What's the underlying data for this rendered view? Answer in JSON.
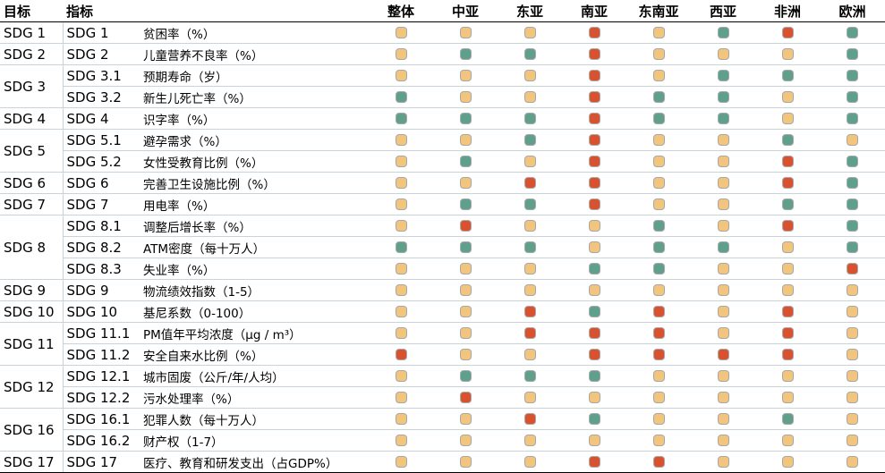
{
  "columns": {
    "goal": "目标",
    "indicator": "指标",
    "regions": [
      "整体",
      "中亚",
      "东亚",
      "南亚",
      "东南亚",
      "西亚",
      "非洲",
      "欧洲"
    ]
  },
  "legend_colors": {
    "y": "#f2c57f",
    "g": "#5fa08c",
    "r": "#d9522f"
  },
  "rows": [
    {
      "goal": "SDG 1",
      "span": 1,
      "id": "SDG 1",
      "desc": "贫困率（%）",
      "s": "yyyrygrg"
    },
    {
      "goal": "SDG 2",
      "span": 1,
      "id": "SDG 2",
      "desc": "儿童营养不良率（%）",
      "s": "yggryyyg"
    },
    {
      "goal": "SDG 3",
      "span": 2,
      "id": "SDG 3.1",
      "desc": "预期寿命（岁）",
      "s": "yyyryggg"
    },
    {
      "goal": "",
      "span": 0,
      "id": "SDG 3.2",
      "desc": "新生儿死亡率（%）",
      "s": "gyyrggyg"
    },
    {
      "goal": "SDG 4",
      "span": 1,
      "id": "SDG 4",
      "desc": "识字率（%）",
      "s": "gggrggyg"
    },
    {
      "goal": "SDG 5",
      "span": 2,
      "id": "SDG 5.1",
      "desc": "避孕需求（%）",
      "s": "yygryygy"
    },
    {
      "goal": "",
      "span": 0,
      "id": "SDG 5.2",
      "desc": "女性受教育比例（%）",
      "s": "ygyryyrg"
    },
    {
      "goal": "SDG 6",
      "span": 1,
      "id": "SDG 6",
      "desc": "完善卫生设施比例（%）",
      "s": "yyrryyrg"
    },
    {
      "goal": "SDG 7",
      "span": 1,
      "id": "SDG 7",
      "desc": "用电率（%）",
      "s": "yggryygg"
    },
    {
      "goal": "SDG 8",
      "span": 3,
      "id": "SDG 8.1",
      "desc": "调整后增长率（%）",
      "s": "yryygyrg"
    },
    {
      "goal": "",
      "span": 0,
      "id": "SDG 8.2",
      "desc": "ATM密度（每十万人）",
      "s": "gggyggyg"
    },
    {
      "goal": "",
      "span": 0,
      "id": "SDG 8.3",
      "desc": "失业率（%）",
      "s": "yyyggyyr"
    },
    {
      "goal": "SDG 9",
      "span": 1,
      "id": "SDG 9",
      "desc": "物流绩效指数（1-5）",
      "s": "yyyyyyyy"
    },
    {
      "goal": "SDG 10",
      "span": 1,
      "id": "SDG 10",
      "desc": "基尼系数（0-100）",
      "s": "yyrgryry"
    },
    {
      "goal": "SDG 11",
      "span": 2,
      "id": "SDG 11.1",
      "desc": "PM值年平均浓度（μg / m³）",
      "s": "yyrrryry"
    },
    {
      "goal": "",
      "span": 0,
      "id": "SDG 11.2",
      "desc": "安全自来水比例（%）",
      "s": "ryyrrrry"
    },
    {
      "goal": "SDG 12",
      "span": 2,
      "id": "SDG 12.1",
      "desc": "城市固废（公斤/年/人均）",
      "s": "ygggyyyy"
    },
    {
      "goal": "",
      "span": 0,
      "id": "SDG 12.2",
      "desc": "污水处理率（%）",
      "s": "yryyyyyy"
    },
    {
      "goal": "SDG 16",
      "span": 2,
      "id": "SDG 16.1",
      "desc": "犯罪人数（每十万人）",
      "s": "yyrgyygy"
    },
    {
      "goal": "",
      "span": 0,
      "id": "SDG 16.2",
      "desc": "财产权（1-7）",
      "s": "yyyyyyyy"
    },
    {
      "goal": "SDG 17",
      "span": 1,
      "id": "SDG 17",
      "desc": "医疗、教育和研发支出（占GDP%）",
      "s": "yyyrryyy"
    }
  ]
}
